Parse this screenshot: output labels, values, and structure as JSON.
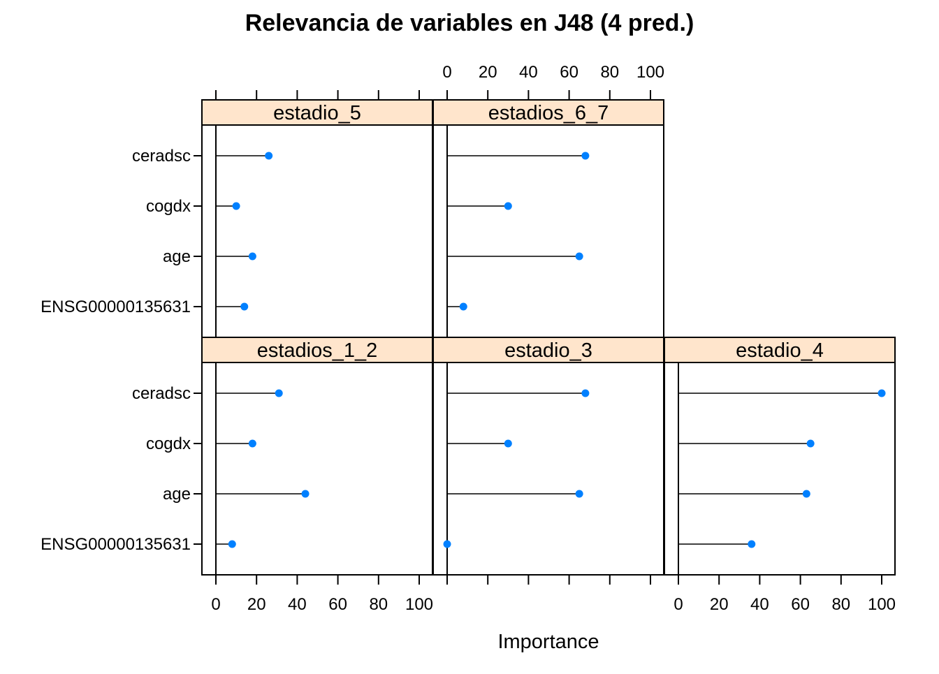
{
  "title": "Relevancia de variables en J48 (4 pred.)",
  "colors": {
    "strip_bg": "#ffe5cc",
    "point": "#0080ff",
    "line": "#000000",
    "frame": "#000000"
  },
  "chart_data": {
    "type": "dotplot",
    "title": "Relevancia de variables en J48 (4 pred.)",
    "xlabel": "Importance",
    "ylabel": "",
    "xlim": [
      0,
      100
    ],
    "xticks": [
      "0",
      "20",
      "40",
      "60",
      "80",
      "100"
    ],
    "categories": [
      "ceradsc",
      "cogdx",
      "age",
      "ENSG00000135631"
    ],
    "layout": "3 columns x 2 rows",
    "panels": [
      {
        "name": "estadio_5",
        "values": [
          26,
          10,
          18,
          14
        ]
      },
      {
        "name": "estadios_6_7",
        "values": [
          68,
          30,
          65,
          8
        ]
      },
      {
        "name": "estadios_1_2",
        "values": [
          31,
          18,
          44,
          8
        ]
      },
      {
        "name": "estadio_3",
        "values": [
          68,
          30,
          65,
          0
        ]
      },
      {
        "name": "estadio_4",
        "values": [
          100,
          65,
          63,
          36
        ]
      }
    ]
  }
}
